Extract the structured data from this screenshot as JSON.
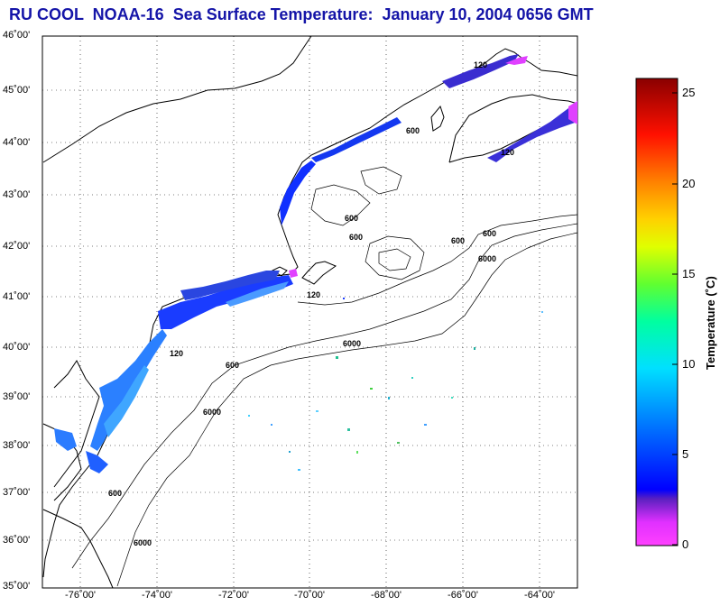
{
  "title": "RU COOL  NOAA-16  Sea Surface Temperature:  January 10, 2004 0656 GMT",
  "map": {
    "lat_labels": [
      "46˚00'",
      "45˚00'",
      "44˚00'",
      "43˚00'",
      "42˚00'",
      "41˚00'",
      "40˚00'",
      "39˚00'",
      "38˚00'",
      "37˚00'",
      "36˚00'",
      "35˚00'"
    ],
    "lon_labels": [
      "-76˚00'",
      "-74˚00'",
      "-72˚00'",
      "-70˚00'",
      "-68˚00'",
      "-66˚00'",
      "-64˚00'"
    ],
    "lat_range": [
      35,
      46
    ],
    "lon_range": [
      -77,
      -63
    ],
    "isobath_labels": [
      "120",
      "600",
      "6000"
    ]
  },
  "colorbar": {
    "title": "Temperature (˚C)",
    "ticks": [
      "25",
      "20",
      "15",
      "10",
      "5",
      "0"
    ],
    "range": [
      0,
      26
    ],
    "colors": [
      "#ff40ff",
      "#c020ff",
      "#3a20c0",
      "#0000ff",
      "#0088ff",
      "#00e0ff",
      "#00ffc0",
      "#40ff40",
      "#d0ff00",
      "#ffff00",
      "#ffa000",
      "#ff4000",
      "#ff0000",
      "#a00000"
    ]
  }
}
